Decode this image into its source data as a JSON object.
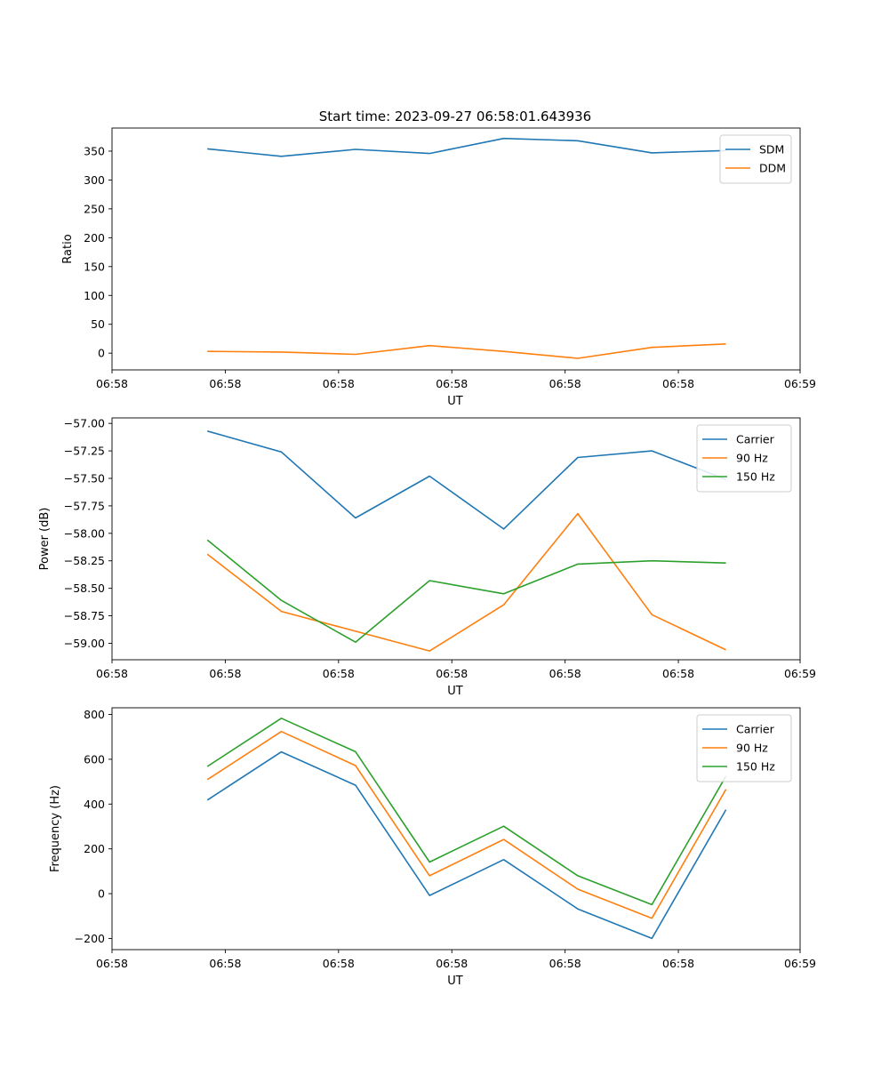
{
  "title": "Start time: 2023-09-27 06:58:01.643936",
  "colors": {
    "blue": "#1f77b4",
    "orange": "#ff7f0e",
    "green": "#2ca02c"
  },
  "chart_data": [
    {
      "type": "line",
      "xlabel": "UT",
      "ylabel": "Ratio",
      "x": [
        0.9,
        1.6,
        2.3,
        3.0,
        3.7,
        4.4,
        5.1,
        5.8
      ],
      "xlim": [
        0,
        6.5
      ],
      "xticks": [
        0,
        1.07,
        2.14,
        3.21,
        4.28,
        5.35,
        6.5
      ],
      "xtick_labels": [
        "06:58",
        "06:58",
        "06:58",
        "06:58",
        "06:58",
        "06:58",
        "06:59"
      ],
      "ylim": [
        -29,
        390
      ],
      "yticks": [
        0,
        50,
        100,
        150,
        200,
        250,
        300,
        350
      ],
      "ytick_labels": [
        "0",
        "50",
        "100",
        "150",
        "200",
        "250",
        "300",
        "350"
      ],
      "legend": "top-right",
      "series": [
        {
          "name": "SDM",
          "color": "#1f77b4",
          "values": [
            354,
            341,
            353,
            346,
            372,
            368,
            347,
            351
          ]
        },
        {
          "name": "DDM",
          "color": "#ff7f0e",
          "values": [
            3,
            2,
            -2,
            13,
            3,
            -9,
            10,
            16
          ]
        }
      ]
    },
    {
      "type": "line",
      "xlabel": "UT",
      "ylabel": "Power (dB)",
      "x": [
        0.9,
        1.6,
        2.3,
        3.0,
        3.7,
        4.4,
        5.1,
        5.8
      ],
      "xlim": [
        0,
        6.5
      ],
      "xticks": [
        0,
        1.07,
        2.14,
        3.21,
        4.28,
        5.35,
        6.5
      ],
      "xtick_labels": [
        "06:58",
        "06:58",
        "06:58",
        "06:58",
        "06:58",
        "06:58",
        "06:59"
      ],
      "ylim": [
        -59.15,
        -56.95
      ],
      "yticks": [
        -59.0,
        -58.75,
        -58.5,
        -58.25,
        -58.0,
        -57.75,
        -57.5,
        -57.25,
        -57.0
      ],
      "ytick_labels": [
        "−59.00",
        "−58.75",
        "−58.50",
        "−58.25",
        "−58.00",
        "−57.75",
        "−57.50",
        "−57.25",
        "−57.00"
      ],
      "legend": "top-right",
      "series": [
        {
          "name": "Carrier",
          "color": "#1f77b4",
          "values": [
            -57.07,
            -57.26,
            -57.86,
            -57.48,
            -57.96,
            -57.31,
            -57.25,
            -57.51
          ]
        },
        {
          "name": "90 Hz",
          "color": "#ff7f0e",
          "values": [
            -58.19,
            -58.71,
            -58.89,
            -59.07,
            -58.65,
            -57.82,
            -58.74,
            -59.06
          ]
        },
        {
          "name": "150 Hz",
          "color": "#2ca02c",
          "values": [
            -58.06,
            -58.61,
            -58.99,
            -58.43,
            -58.55,
            -58.28,
            -58.25,
            -58.27
          ]
        }
      ]
    },
    {
      "type": "line",
      "xlabel": "UT",
      "ylabel": "Frequency (Hz)",
      "x": [
        0.9,
        1.6,
        2.3,
        3.0,
        3.7,
        4.4,
        5.1,
        5.8
      ],
      "xlim": [
        0,
        6.5
      ],
      "xticks": [
        0,
        1.07,
        2.14,
        3.21,
        4.28,
        5.35,
        6.5
      ],
      "xtick_labels": [
        "06:58",
        "06:58",
        "06:58",
        "06:58",
        "06:58",
        "06:58",
        "06:59"
      ],
      "ylim": [
        -250,
        830
      ],
      "yticks": [
        -200,
        0,
        200,
        400,
        600,
        800
      ],
      "ytick_labels": [
        "−200",
        "0",
        "200",
        "400",
        "600",
        "800"
      ],
      "legend": "top-right",
      "series": [
        {
          "name": "Carrier",
          "color": "#1f77b4",
          "values": [
            418,
            633,
            484,
            -8,
            152,
            -68,
            -200,
            375
          ]
        },
        {
          "name": "90 Hz",
          "color": "#ff7f0e",
          "values": [
            509,
            724,
            572,
            80,
            242,
            20,
            -110,
            466
          ]
        },
        {
          "name": "150 Hz",
          "color": "#2ca02c",
          "values": [
            568,
            783,
            634,
            141,
            301,
            80,
            -49,
            525
          ]
        }
      ]
    }
  ]
}
